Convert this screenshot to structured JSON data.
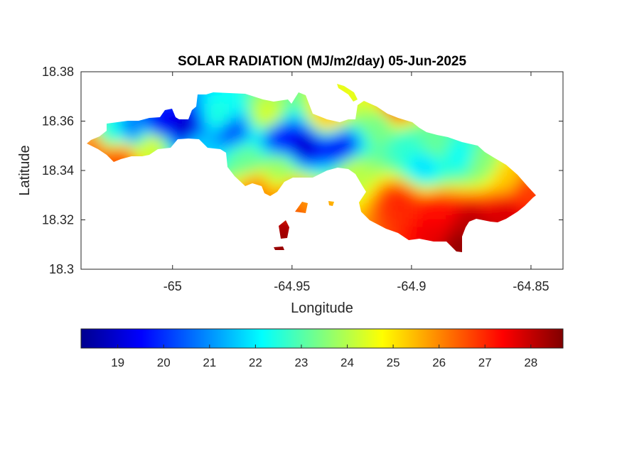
{
  "chart_data": {
    "type": "heatmap",
    "title": "SOLAR RADIATION (MJ/m2/day) 05-Jun-2025",
    "xlabel": "Longitude",
    "ylabel": "Latitude",
    "xlim": [
      -65.0383,
      -64.8366
    ],
    "ylim": [
      18.3,
      18.38
    ],
    "xticks": [
      -65,
      -64.95,
      -64.9,
      -64.85
    ],
    "xtick_labels": [
      "-65",
      "-64.95",
      "-64.9",
      "-64.85"
    ],
    "yticks": [
      18.3,
      18.32,
      18.34,
      18.36,
      18.38
    ],
    "ytick_labels": [
      "18.3",
      "18.32",
      "18.34",
      "18.36",
      "18.38"
    ],
    "grid": false,
    "colormap": "jet",
    "colorbar": {
      "orientation": "horizontal",
      "location": "bottom",
      "range": [
        18.2,
        28.7
      ],
      "ticks": [
        19,
        20,
        21,
        22,
        23,
        24,
        25,
        26,
        27,
        28
      ],
      "tick_labels": [
        "19",
        "20",
        "21",
        "22",
        "23",
        "24",
        "25",
        "26",
        "27",
        "28"
      ]
    },
    "region_values": [
      {
        "lon": -65.034,
        "lat": 18.35,
        "value": 26.2
      },
      {
        "lon": -65.03,
        "lat": 18.344,
        "value": 26.4
      },
      {
        "lon": -65.022,
        "lat": 18.345,
        "value": 26.6
      },
      {
        "lon": -65.026,
        "lat": 18.355,
        "value": 22.4
      },
      {
        "lon": -65.017,
        "lat": 18.357,
        "value": 20.8
      },
      {
        "lon": -65.008,
        "lat": 18.351,
        "value": 24.5
      },
      {
        "lon": -65.005,
        "lat": 18.358,
        "value": 19.3
      },
      {
        "lon": -64.995,
        "lat": 18.357,
        "value": 18.9
      },
      {
        "lon": -64.99,
        "lat": 18.35,
        "value": 21.7
      },
      {
        "lon": -64.98,
        "lat": 18.362,
        "value": 22.5
      },
      {
        "lon": -64.975,
        "lat": 18.356,
        "value": 20.3
      },
      {
        "lon": -64.97,
        "lat": 18.345,
        "value": 23.2
      },
      {
        "lon": -64.96,
        "lat": 18.362,
        "value": 24.4
      },
      {
        "lon": -64.955,
        "lat": 18.354,
        "value": 19.6
      },
      {
        "lon": -64.945,
        "lat": 18.35,
        "value": 19.0
      },
      {
        "lon": -64.955,
        "lat": 18.34,
        "value": 23.8
      },
      {
        "lon": -64.935,
        "lat": 18.362,
        "value": 25.4
      },
      {
        "lon": -64.93,
        "lat": 18.349,
        "value": 19.4
      },
      {
        "lon": -64.925,
        "lat": 18.34,
        "value": 24.1
      },
      {
        "lon": -64.965,
        "lat": 18.332,
        "value": 26.0
      },
      {
        "lon": -64.95,
        "lat": 18.33,
        "value": 26.0
      },
      {
        "lon": -64.912,
        "lat": 18.36,
        "value": 23.2
      },
      {
        "lon": -64.908,
        "lat": 18.364,
        "value": 26.8
      },
      {
        "lon": -64.903,
        "lat": 18.35,
        "value": 22.6
      },
      {
        "lon": -64.895,
        "lat": 18.342,
        "value": 21.8
      },
      {
        "lon": -64.89,
        "lat": 18.35,
        "value": 23.2
      },
      {
        "lon": -64.88,
        "lat": 18.346,
        "value": 22.2
      },
      {
        "lon": -64.87,
        "lat": 18.343,
        "value": 23.5
      },
      {
        "lon": -64.86,
        "lat": 18.337,
        "value": 25.3
      },
      {
        "lon": -64.852,
        "lat": 18.331,
        "value": 26.8
      },
      {
        "lon": -64.905,
        "lat": 18.327,
        "value": 27.0
      },
      {
        "lon": -64.89,
        "lat": 18.322,
        "value": 27.3
      },
      {
        "lon": -64.875,
        "lat": 18.318,
        "value": 28.1
      },
      {
        "lon": -64.86,
        "lat": 18.322,
        "value": 27.8
      },
      {
        "lon": -64.89,
        "lat": 18.315,
        "value": 27.6
      },
      {
        "lon": -64.88,
        "lat": 18.31,
        "value": 28.5
      },
      {
        "lon": -64.938,
        "lat": 18.324,
        "value": 25.8
      },
      {
        "lon": -64.952,
        "lat": 18.316,
        "value": 28.3
      },
      {
        "lon": -64.955,
        "lat": 18.31,
        "value": 28.5
      }
    ]
  }
}
